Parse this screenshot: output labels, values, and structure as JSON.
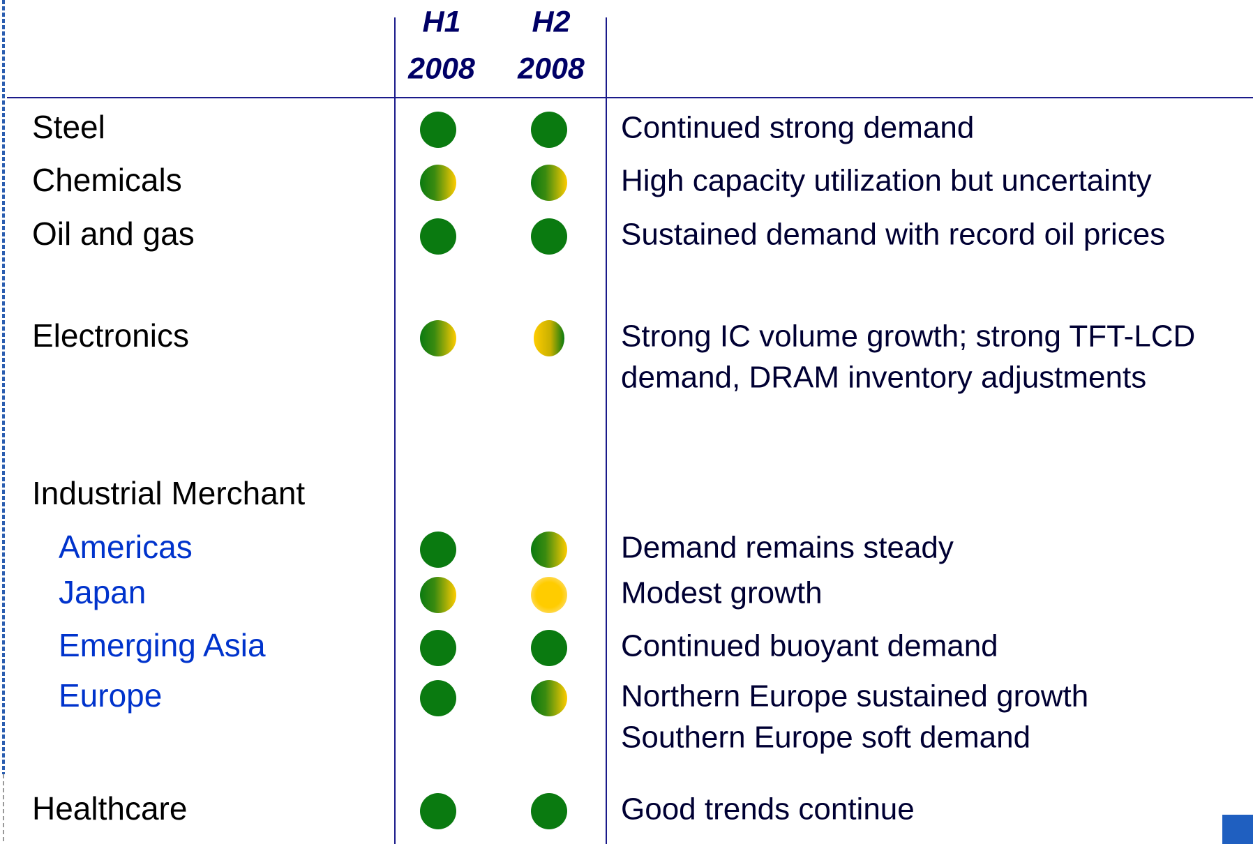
{
  "header": {
    "columns": [
      [
        "H1",
        "2008"
      ],
      [
        "H2",
        "2008"
      ]
    ]
  },
  "rows": [
    {
      "label": "Steel",
      "sub": false,
      "y": null,
      "h1": "green",
      "h2": "green",
      "description": [
        "Continued strong demand"
      ]
    },
    {
      "label": "Chemicals",
      "sub": false,
      "h1": "mixed",
      "h2": "mixed",
      "description": [
        "High capacity utilization but uncertainty"
      ]
    },
    {
      "label": "Oil and gas",
      "sub": false,
      "h1": "green",
      "h2": "green",
      "description": [
        "Sustained demand with record oil prices"
      ]
    },
    {
      "label": "Electronics",
      "sub": false,
      "h1": "mixed",
      "h2": "mixed-reverse",
      "description": [
        "Strong IC volume growth; strong TFT-LCD",
        "demand, DRAM inventory adjustments"
      ]
    },
    {
      "label": "Industrial Merchant",
      "sub": false,
      "description": []
    },
    {
      "label": "Americas",
      "sub": true,
      "h1": "green",
      "h2": "mixed",
      "description": [
        "Demand remains steady"
      ]
    },
    {
      "label": "Japan",
      "sub": true,
      "h1": "mixed",
      "h2": "yellow",
      "description": [
        "Modest growth"
      ]
    },
    {
      "label": "Emerging Asia",
      "sub": true,
      "h1": "green",
      "h2": "green",
      "description": [
        "Continued buoyant demand"
      ]
    },
    {
      "label": "Europe",
      "sub": true,
      "h1": "green",
      "h2": "mixed",
      "description": [
        "Northern Europe sustained growth",
        "Southern Europe soft demand"
      ]
    },
    {
      "label": "Healthcare",
      "sub": false,
      "h1": "green",
      "h2": "green",
      "description": [
        "Good trends continue"
      ]
    }
  ]
}
